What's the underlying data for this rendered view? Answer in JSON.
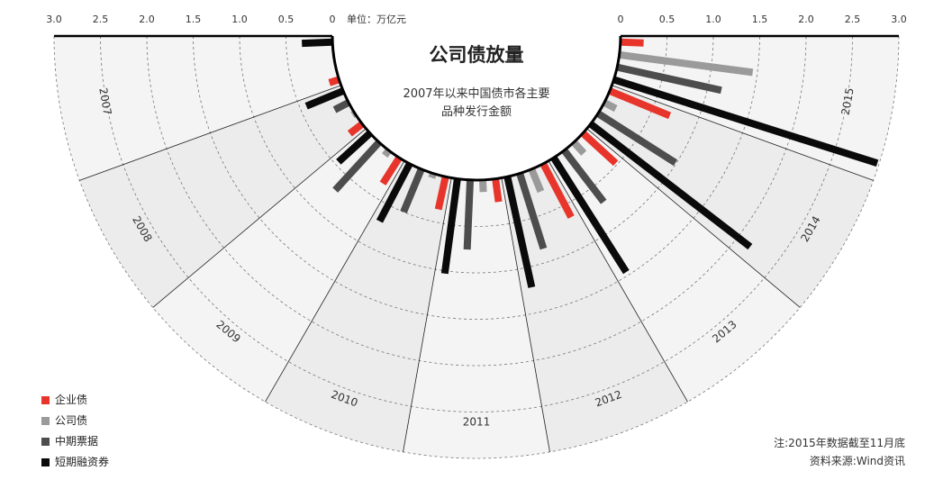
{
  "title": "公司债放量",
  "subtitle_line1": "2007年以来中国债市各主要",
  "subtitle_line2": "品种发行金额",
  "unit_label": "单位：万亿元",
  "note_line1": "注:2015年数据截至11月底",
  "note_line2": "资料来源:Wind资讯",
  "chart_data": {
    "type": "bar",
    "layout": "radial",
    "title": "公司债放量",
    "subtitle": "2007年以来中国债市各主要品种发行金额",
    "unit": "万亿元",
    "axis_ticks": [
      "3.0",
      "2.5",
      "2.0",
      "1.5",
      "1.0",
      "0.5",
      "0"
    ],
    "right_axis_ticks": [
      "0",
      "0.5",
      "1.0",
      "1.5",
      "2.0",
      "2.5",
      "3.0"
    ],
    "ylim": [
      0,
      3.0
    ],
    "categories": [
      "2007",
      "2008",
      "2009",
      "2010",
      "2011",
      "2012",
      "2013",
      "2014",
      "2015"
    ],
    "series": [
      {
        "name": "企业债",
        "color": "#e8352b",
        "values": [
          0.11,
          0.17,
          0.33,
          0.36,
          0.25,
          0.65,
          0.48,
          0.7,
          0.25
        ]
      },
      {
        "name": "公司债",
        "color": "#9a9a9a",
        "values": [
          0.01,
          0.03,
          0.07,
          0.05,
          0.13,
          0.26,
          0.16,
          0.14,
          1.45
        ]
      },
      {
        "name": "中期票据",
        "color": "#4d4d4d",
        "values": [
          0.0,
          0.17,
          0.7,
          0.5,
          0.75,
          0.85,
          0.7,
          0.99,
          1.15
        ]
      },
      {
        "name": "短期融资券",
        "color": "#0a0a0a",
        "values": [
          0.33,
          0.43,
          0.46,
          0.7,
          1.03,
          1.22,
          1.46,
          2.17,
          2.98
        ]
      }
    ],
    "legend_position": "bottom-left",
    "grid": true
  }
}
